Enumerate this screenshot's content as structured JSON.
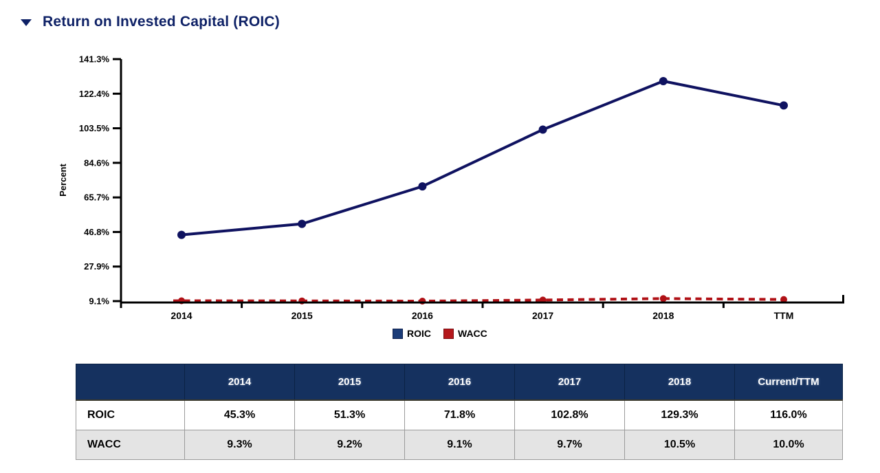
{
  "page": {
    "title": "Return on Invested Capital (ROIC)"
  },
  "colors": {
    "title_navy": "#0e2166",
    "roic_line": "#0f1260",
    "wacc_red": "#b01116",
    "legend_roic_swatch": "#1b3c78",
    "legend_roic_border": "#0d1f4d",
    "legend_wacc_swatch": "#b5181c",
    "legend_wacc_border": "#7a0c10",
    "table_header_bg": "#15315f",
    "table_alt_row_bg": "#e4e4e4",
    "axis_black": "#000000"
  },
  "chart_data": {
    "type": "line",
    "title": "Return on Invested Capital (ROIC)",
    "xlabel": "",
    "ylabel": "Percent",
    "categories": [
      "2014",
      "2015",
      "2016",
      "2017",
      "2018",
      "TTM"
    ],
    "y_ticks": [
      "141.3%",
      "122.4%",
      "103.5%",
      "84.6%",
      "65.7%",
      "46.8%",
      "27.9%",
      "9.1%"
    ],
    "ylim": [
      9.1,
      141.3
    ],
    "grid": false,
    "legend_position": "bottom-center",
    "series": [
      {
        "name": "ROIC",
        "style": "solid",
        "color": "#0f1260",
        "values": [
          45.3,
          51.3,
          71.8,
          102.8,
          129.3,
          116.0
        ]
      },
      {
        "name": "WACC",
        "style": "dashed",
        "color": "#b01116",
        "values": [
          9.3,
          9.2,
          9.1,
          9.7,
          10.5,
          10.0
        ]
      }
    ]
  },
  "legend": {
    "items": [
      {
        "label": "ROIC",
        "swatch": "#1b3c78",
        "border": "#0d1f4d"
      },
      {
        "label": "WACC",
        "swatch": "#b5181c",
        "border": "#7a0c10"
      }
    ]
  },
  "table": {
    "headers": [
      "",
      "2014",
      "2015",
      "2016",
      "2017",
      "2018",
      "Current/TTM"
    ],
    "rows": [
      {
        "label": "ROIC",
        "values": [
          "45.3%",
          "51.3%",
          "71.8%",
          "102.8%",
          "129.3%",
          "116.0%"
        ]
      },
      {
        "label": "WACC",
        "values": [
          "9.3%",
          "9.2%",
          "9.1%",
          "9.7%",
          "10.5%",
          "10.0%"
        ]
      }
    ]
  }
}
